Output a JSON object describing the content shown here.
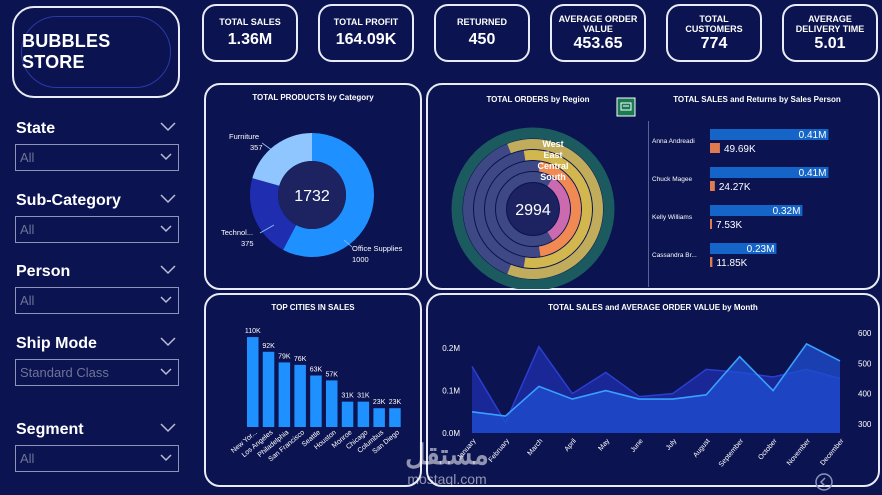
{
  "store_name": "BUBBLES STORE",
  "kpis": [
    {
      "label": "TOTAL SALES",
      "value": "1.36M"
    },
    {
      "label": "TOTAL PROFIT",
      "value": "164.09K"
    },
    {
      "label": "RETURNED",
      "value": "450"
    },
    {
      "label": "AVERAGE ORDER VALUE",
      "value": "453.65"
    },
    {
      "label": "TOTAL CUSTOMERS",
      "value": "774"
    },
    {
      "label": "AVERAGE DELIVERY TIME",
      "value": "5.01"
    }
  ],
  "filters": [
    {
      "title": "State",
      "value": "All"
    },
    {
      "title": "Sub-Category",
      "value": "All"
    },
    {
      "title": "Person",
      "value": "All"
    },
    {
      "title": "Ship Mode",
      "value": "Standard Class"
    },
    {
      "title": "Segment",
      "value": "All"
    }
  ],
  "products_panel": {
    "title": "TOTAL PRODUCTS by Category",
    "total": "1732",
    "slices": [
      {
        "name": "Office Supplies",
        "value": 1000,
        "label": "1000",
        "color": "#1e90ff"
      },
      {
        "name": "Technol...",
        "value": 375,
        "label": "375",
        "color": "#1f2eb0"
      },
      {
        "name": "Furniture",
        "value": 357,
        "label": "357",
        "color": "#8fc6ff"
      }
    ]
  },
  "orders_panel": {
    "title": "TOTAL ORDERS by Region",
    "total": "2994",
    "regions": [
      {
        "name": "West",
        "share": 0.62,
        "color": "#c0ac5b"
      },
      {
        "name": "East",
        "share": 0.55,
        "color": "#d2b64e"
      },
      {
        "name": "Central",
        "share": 0.45,
        "color": "#f08a52"
      },
      {
        "name": "South",
        "share": 0.32,
        "color": "#cc6ab0"
      }
    ],
    "colors": {
      "outer": "#1b5b5f",
      "rest": "#3d4884"
    }
  },
  "salesperson_panel": {
    "title": "TOTAL SALES and Returns by Sales Person",
    "people": [
      {
        "name": "Anna Andreadi",
        "sales": 0.41,
        "sales_label": "0.41M",
        "returns": 49.69,
        "returns_label": "49.69K"
      },
      {
        "name": "Chuck Magee",
        "sales": 0.41,
        "sales_label": "0.41M",
        "returns": 24.27,
        "returns_label": "24.27K"
      },
      {
        "name": "Kelly Williams",
        "sales": 0.32,
        "sales_label": "0.32M",
        "returns": 7.53,
        "returns_label": "7.53K"
      },
      {
        "name": "Cassandra Br...",
        "sales": 0.23,
        "sales_label": "0.23M",
        "returns": 11.85,
        "returns_label": "11.85K"
      }
    ]
  },
  "chart_data": [
    {
      "type": "bar",
      "title": "TOP CITIES IN SALES",
      "categories": [
        "New Yor...",
        "Los Angeles",
        "Philadelphia",
        "San Francisco",
        "Seattle",
        "Houston",
        "Monroe",
        "Chicago",
        "Columbus",
        "San Diego"
      ],
      "values": [
        110,
        92,
        79,
        76,
        63,
        57,
        31,
        31,
        23,
        23
      ],
      "value_labels": [
        "110K",
        "92K",
        "79K",
        "76K",
        "63K",
        "57K",
        "31K",
        "31K",
        "23K",
        "23K"
      ],
      "ylim": [
        0,
        120
      ],
      "color": "#1e90ff"
    },
    {
      "type": "area",
      "title": "TOTAL SALES and AVERAGE ORDER VALUE by Month",
      "categories": [
        "January",
        "February",
        "March",
        "April",
        "May",
        "June",
        "July",
        "August",
        "September",
        "October",
        "November",
        "December"
      ],
      "left_axis": {
        "ticks": [
          "0.0M",
          "0.1M",
          "0.2M"
        ],
        "ylim": [
          0,
          0.25
        ]
      },
      "right_axis": {
        "ticks": [
          "300",
          "400",
          "500",
          "600"
        ],
        "ylim": [
          270,
          620
        ]
      },
      "series": [
        {
          "name": "Total Sales",
          "axis": "left",
          "values": [
            0.05,
            0.04,
            0.11,
            0.08,
            0.1,
            0.08,
            0.08,
            0.09,
            0.18,
            0.1,
            0.21,
            0.17
          ]
        },
        {
          "name": "Average Order Value",
          "axis": "right",
          "values": [
            490,
            305,
            555,
            400,
            470,
            390,
            400,
            480,
            470,
            455,
            480,
            450
          ]
        }
      ]
    }
  ],
  "watermark": {
    "arabic": "مستقل",
    "latin": "mostaql.com"
  }
}
